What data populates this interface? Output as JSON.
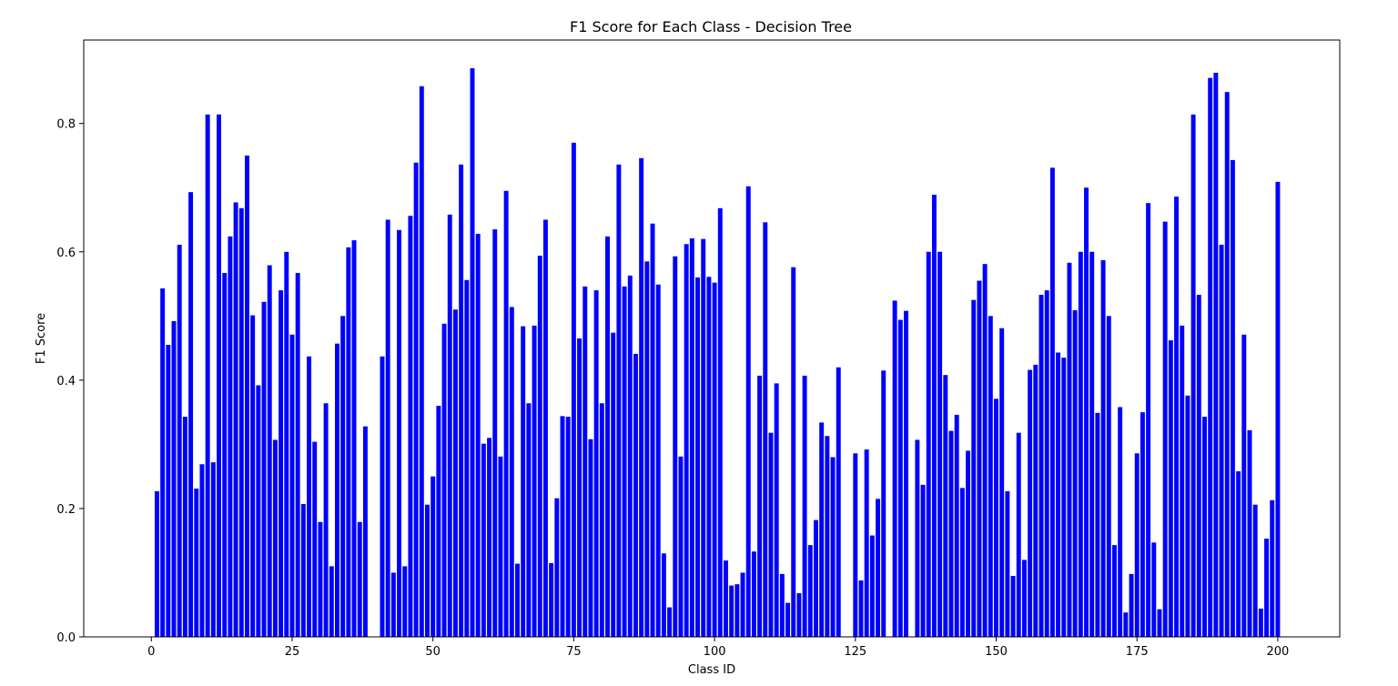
{
  "chart_data": {
    "type": "bar",
    "title": "F1 Score for Each Class - Decision Tree",
    "xlabel": "Class ID",
    "ylabel": "F1 Score",
    "xlim": [
      -12,
      211
    ],
    "ylim": [
      0,
      0.93
    ],
    "xticks": [
      0,
      25,
      50,
      75,
      100,
      125,
      150,
      175,
      200
    ],
    "yticks": [
      0.0,
      0.2,
      0.4,
      0.6,
      0.8
    ],
    "ytick_labels": [
      "0.0",
      "0.2",
      "0.4",
      "0.6",
      "0.8"
    ],
    "bar_color": "#0000ff",
    "grid": false,
    "x": [
      1,
      2,
      3,
      4,
      5,
      6,
      7,
      8,
      9,
      10,
      11,
      12,
      13,
      14,
      15,
      16,
      17,
      18,
      19,
      20,
      21,
      22,
      23,
      24,
      25,
      26,
      27,
      28,
      29,
      30,
      31,
      32,
      33,
      34,
      35,
      36,
      37,
      38,
      39,
      40,
      41,
      42,
      43,
      44,
      45,
      46,
      47,
      48,
      49,
      50,
      51,
      52,
      53,
      54,
      55,
      56,
      57,
      58,
      59,
      60,
      61,
      62,
      63,
      64,
      65,
      66,
      67,
      68,
      69,
      70,
      71,
      72,
      73,
      74,
      75,
      76,
      77,
      78,
      79,
      80,
      81,
      82,
      83,
      84,
      85,
      86,
      87,
      88,
      89,
      90,
      91,
      92,
      93,
      94,
      95,
      96,
      97,
      98,
      99,
      100,
      101,
      102,
      103,
      104,
      105,
      106,
      107,
      108,
      109,
      110,
      111,
      112,
      113,
      114,
      115,
      116,
      117,
      118,
      119,
      120,
      121,
      122,
      123,
      124,
      125,
      126,
      127,
      128,
      129,
      130,
      131,
      132,
      133,
      134,
      135,
      136,
      137,
      138,
      139,
      140,
      141,
      142,
      143,
      144,
      145,
      146,
      147,
      148,
      149,
      150,
      151,
      152,
      153,
      154,
      155,
      156,
      157,
      158,
      159,
      160,
      161,
      162,
      163,
      164,
      165,
      166,
      167,
      168,
      169,
      170,
      171,
      172,
      173,
      174,
      175,
      176,
      177,
      178,
      179,
      180,
      181,
      182,
      183,
      184,
      185,
      186,
      187,
      188,
      189,
      190,
      191,
      192,
      193,
      194,
      195,
      196,
      197,
      198,
      199,
      200
    ],
    "values": [
      0.227,
      0.543,
      0.455,
      0.492,
      0.611,
      0.343,
      0.693,
      0.231,
      0.269,
      0.814,
      0.272,
      0.814,
      0.567,
      0.624,
      0.677,
      0.668,
      0.75,
      0.501,
      0.392,
      0.522,
      0.579,
      0.307,
      0.54,
      0.6,
      0.471,
      0.567,
      0.207,
      0.437,
      0.304,
      0.179,
      0.364,
      0.11,
      0.457,
      0.5,
      0.607,
      0.618,
      0.179,
      0.328,
      0,
      0,
      0.437,
      0.65,
      0.1,
      0.634,
      0.11,
      0.656,
      0.739,
      0.858,
      0.206,
      0.25,
      0.36,
      0.488,
      0.658,
      0.51,
      0.736,
      0.556,
      0.886,
      0.628,
      0.301,
      0.31,
      0.635,
      0.281,
      0.695,
      0.514,
      0.114,
      0.484,
      0.364,
      0.485,
      0.594,
      0.65,
      0.115,
      0.216,
      0.344,
      0.343,
      0.77,
      0.465,
      0.546,
      0.308,
      0.54,
      0.364,
      0.624,
      0.474,
      0.736,
      0.546,
      0.563,
      0.441,
      0.746,
      0.585,
      0.644,
      0.549,
      0.13,
      0.046,
      0.593,
      0.281,
      0.612,
      0.621,
      0.56,
      0.62,
      0.561,
      0.552,
      0.668,
      0.119,
      0.08,
      0.082,
      0.1,
      0.702,
      0.133,
      0.407,
      0.646,
      0.318,
      0.395,
      0.098,
      0.053,
      0.576,
      0.068,
      0.407,
      0.143,
      0.182,
      0.334,
      0.313,
      0.28,
      0.42,
      0,
      0,
      0.286,
      0.088,
      0.292,
      0.158,
      0.215,
      0.415,
      0,
      0.524,
      0.494,
      0.508,
      0,
      0.307,
      0.237,
      0.6,
      0.689,
      0.6,
      0.408,
      0.321,
      0.346,
      0.232,
      0.29,
      0.525,
      0.555,
      0.581,
      0.5,
      0.371,
      0.481,
      0.227,
      0.095,
      0.318,
      0.12,
      0.416,
      0.424,
      0.533,
      0.54,
      0.731,
      0.443,
      0.435,
      0.583,
      0.509,
      0.6,
      0.7,
      0.6,
      0.349,
      0.587,
      0.5,
      0.143,
      0.358,
      0.038,
      0.098,
      0.286,
      0.35,
      0.676,
      0.147,
      0.043,
      0.647,
      0.462,
      0.686,
      0.485,
      0.376,
      0.814,
      0.533,
      0.343,
      0.871,
      0.879,
      0.611,
      0.849,
      0.743,
      0.258,
      0.471,
      0.322,
      0.206,
      0.044,
      0.153,
      0.213,
      0.709
    ]
  }
}
